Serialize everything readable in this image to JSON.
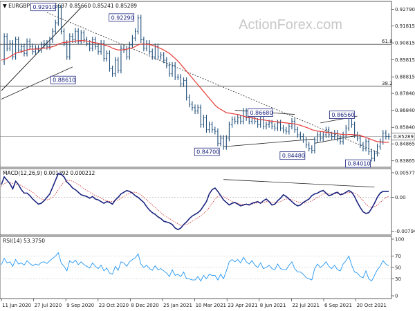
{
  "chart_data": {
    "type": "line",
    "symbol": "EURGBP",
    "timeframe": "Daily",
    "ohlc_header": "0.85637 0.85660 0.85241 0.85289",
    "watermark": "ActionForex.com",
    "x_ticks": [
      "11 Jun 2020",
      "27 Jul 2020",
      "9 Sep 2020",
      "23 Oct 2020",
      "8 Dec 2020",
      "25 Jan 2021",
      "10 Mar 2021",
      "23 Apr 2021",
      "8 Jun 2021",
      "22 Jul 2021",
      "6 Sep 2021",
      "20 Oct 2021"
    ],
    "price": {
      "y_ticks": [
        "0.92790",
        "0.91815",
        "0.90815",
        "0.89815",
        "0.88815",
        "0.87840",
        "0.86840",
        "0.85840",
        "0.84865",
        "0.83865"
      ],
      "ylim": [
        0.8365,
        0.931
      ],
      "last_price_label": "0.85289",
      "fib_lines": [
        {
          "label": "61.8",
          "value": 0.9073
        },
        {
          "label": "38.2",
          "value": 0.8826
        }
      ],
      "callouts": [
        {
          "text": "0.92910",
          "value": 0.9291
        },
        {
          "text": "0.92290",
          "value": 0.9229
        },
        {
          "text": "0.88610",
          "value": 0.8861
        },
        {
          "text": "0.84700",
          "value": 0.847
        },
        {
          "text": "0.86680",
          "value": 0.8668
        },
        {
          "text": "0.84480",
          "value": 0.8448
        },
        {
          "text": "0.86560",
          "value": 0.8656
        },
        {
          "text": "0.84010",
          "value": 0.8401
        }
      ],
      "series": [
        {
          "values": [
            0.897,
            0.912,
            0.905,
            0.908,
            0.9,
            0.91,
            0.904,
            0.906,
            0.902,
            0.909,
            0.906,
            0.903,
            0.905,
            0.904,
            0.907,
            0.908,
            0.906,
            0.91,
            0.915,
            0.92,
            0.9291,
            0.915,
            0.908,
            0.9,
            0.912,
            0.91,
            0.915,
            0.909,
            0.914,
            0.91,
            0.908,
            0.905,
            0.91,
            0.906,
            0.903,
            0.908,
            0.899,
            0.902,
            0.893,
            0.89,
            0.898,
            0.892,
            0.905,
            0.904,
            0.9,
            0.907,
            0.911,
            0.915,
            0.9229,
            0.91,
            0.905,
            0.908,
            0.903,
            0.9,
            0.906,
            0.9,
            0.901,
            0.898,
            0.895,
            0.89,
            0.895,
            0.888,
            0.888,
            0.884,
            0.886,
            0.876,
            0.872,
            0.87,
            0.868,
            0.87,
            0.86,
            0.864,
            0.857,
            0.86,
            0.857,
            0.856,
            0.849,
            0.852,
            0.847,
            0.852,
            0.86,
            0.863,
            0.862,
            0.864,
            0.862,
            0.868,
            0.864,
            0.862,
            0.866,
            0.862,
            0.86,
            0.863,
            0.859,
            0.86,
            0.861,
            0.859,
            0.858,
            0.861,
            0.858,
            0.8568,
            0.856,
            0.859,
            0.862,
            0.857,
            0.854,
            0.853,
            0.851,
            0.848,
            0.846,
            0.8448,
            0.851,
            0.854,
            0.852,
            0.854,
            0.857,
            0.854,
            0.853,
            0.855,
            0.852,
            0.85,
            0.854,
            0.858,
            0.8656,
            0.86,
            0.854,
            0.852,
            0.848,
            0.846,
            0.85,
            0.844,
            0.8401,
            0.843,
            0.847,
            0.85,
            0.855,
            0.853,
            0.8529
          ]
        },
        {
          "values": [
            0.898,
            0.8985,
            0.899,
            0.9,
            0.901,
            0.902,
            0.9025,
            0.903,
            0.9035,
            0.904,
            0.9045,
            0.9045,
            0.9045,
            0.9045,
            0.905,
            0.905,
            0.9052,
            0.9055,
            0.906,
            0.9065,
            0.9075,
            0.908,
            0.9085,
            0.9085,
            0.9088,
            0.909,
            0.9092,
            0.9095,
            0.9095,
            0.9095,
            0.9092,
            0.909,
            0.9085,
            0.9082,
            0.908,
            0.9075,
            0.907,
            0.9065,
            0.906,
            0.905,
            0.9045,
            0.904,
            0.904,
            0.9042,
            0.9045,
            0.9048,
            0.9052,
            0.906,
            0.907,
            0.9075,
            0.9075,
            0.9074,
            0.9072,
            0.9068,
            0.9062,
            0.9055,
            0.9048,
            0.904,
            0.903,
            0.902,
            0.9005,
            0.899,
            0.8975,
            0.8955,
            0.8935,
            0.8915,
            0.8895,
            0.8875,
            0.8855,
            0.8835,
            0.8815,
            0.8795,
            0.8775,
            0.8755,
            0.8735,
            0.8715,
            0.87,
            0.869,
            0.868,
            0.867,
            0.8668,
            0.8665,
            0.8662,
            0.866,
            0.8655,
            0.865,
            0.8645,
            0.8642,
            0.864,
            0.8636,
            0.8632,
            0.863,
            0.8628,
            0.8625,
            0.8622,
            0.862,
            0.8618,
            0.8616,
            0.8614,
            0.8612,
            0.861,
            0.8608,
            0.8606,
            0.8604,
            0.86,
            0.8596,
            0.859,
            0.8584,
            0.8578,
            0.857,
            0.8566,
            0.8562,
            0.856,
            0.8558,
            0.8555,
            0.8552,
            0.855,
            0.8548,
            0.8546,
            0.8544,
            0.8542,
            0.854,
            0.8542,
            0.8542,
            0.854,
            0.8538,
            0.8535,
            0.853,
            0.8524,
            0.8518,
            0.8512,
            0.8505,
            0.85,
            0.8498,
            0.8497,
            0.8496,
            0.8496
          ]
        }
      ]
    },
    "macd": {
      "label": "MACD(12,26,9) 0.001392 0.000212",
      "y_ticks": [
        "0.005779",
        "0.00",
        "-0.007941"
      ],
      "ylim": [
        -0.0082,
        0.0061
      ],
      "series": [
        {
          "values": [
            0.003,
            0.0048,
            0.004,
            0.0032,
            0.002,
            0.0038,
            0.003,
            0.0018,
            0.001,
            0.001,
            0.0004,
            -0.0004,
            -0.001,
            -0.0016,
            -0.0014,
            -0.0008,
            0.0,
            0.0008,
            0.0024,
            0.004,
            0.0056,
            0.0054,
            0.0048,
            0.0036,
            0.003,
            0.0022,
            0.0018,
            0.0012,
            0.0006,
            0.0004,
            0.0002,
            -0.0002,
            0.0002,
            -0.0004,
            -0.0006,
            -0.001,
            -0.0014,
            -0.001,
            -0.0012,
            -0.0016,
            -0.0006,
            0.0,
            0.0008,
            0.0012,
            0.0016,
            0.0014,
            0.001,
            0.0004,
            0.0,
            -0.0006,
            -0.0012,
            -0.0022,
            -0.003,
            -0.0036,
            -0.004,
            -0.0046,
            -0.005,
            -0.0056,
            -0.0058,
            -0.006,
            -0.0064,
            -0.0072,
            -0.0076,
            -0.0072,
            -0.0064,
            -0.0058,
            -0.005,
            -0.0044,
            -0.004,
            -0.0036,
            -0.003,
            -0.002,
            -0.001,
            0.0008,
            0.0018,
            0.0022,
            0.0014,
            0.0004,
            -0.0006,
            -0.0012,
            -0.0018,
            -0.0014,
            -0.0012,
            -0.0016,
            -0.002,
            -0.0018,
            -0.0016,
            -0.0018,
            -0.0014,
            -0.0012,
            -0.001,
            -0.0014,
            -0.0008,
            -0.0004,
            -0.001,
            -0.0018,
            -0.0016,
            -0.0008,
            -0.0002,
            0.0006,
            0.0002,
            -0.0004,
            -0.001,
            -0.0016,
            -0.002,
            -0.0018,
            -0.0012,
            -0.0008,
            -0.0004,
            0.0004,
            0.0008,
            0.001,
            0.0014,
            0.0016,
            0.001,
            0.0004,
            0.0006,
            0.001,
            0.0012,
            0.0006,
            0.0008,
            0.0012,
            0.0016,
            0.0012,
            0.0002,
            -0.0012,
            -0.0024,
            -0.0034,
            -0.0038,
            -0.0036,
            -0.0026,
            -0.0014,
            0.0,
            0.001,
            0.0014,
            0.0014,
            0.0014
          ]
        },
        {
          "values": [
            0.0026,
            0.0032,
            0.0036,
            0.0036,
            0.0032,
            0.003,
            0.003,
            0.0028,
            0.0024,
            0.002,
            0.0016,
            0.0012,
            0.0006,
            0.0,
            -0.0004,
            -0.0006,
            -0.0006,
            -0.0004,
            0.0,
            0.0008,
            0.0018,
            0.0028,
            0.0036,
            0.004,
            0.004,
            0.0038,
            0.0034,
            0.003,
            0.0026,
            0.002,
            0.0016,
            0.0012,
            0.0008,
            0.0004,
            0.0002,
            -0.0002,
            -0.0006,
            -0.0008,
            -0.001,
            -0.001,
            -0.0008,
            -0.0006,
            -0.0002,
            0.0002,
            0.0006,
            0.001,
            0.0012,
            0.0012,
            0.001,
            0.0006,
            0.0,
            -0.0006,
            -0.0012,
            -0.0018,
            -0.0024,
            -0.003,
            -0.0036,
            -0.0042,
            -0.0046,
            -0.005,
            -0.0054,
            -0.0058,
            -0.0062,
            -0.0066,
            -0.0066,
            -0.0064,
            -0.006,
            -0.0056,
            -0.0052,
            -0.0048,
            -0.0044,
            -0.0038,
            -0.0032,
            -0.0024,
            -0.0014,
            -0.0004,
            0.0002,
            0.0004,
            0.0002,
            -0.0002,
            -0.0006,
            -0.001,
            -0.0012,
            -0.0014,
            -0.0016,
            -0.0016,
            -0.0016,
            -0.0016,
            -0.0016,
            -0.0014,
            -0.0013,
            -0.0013,
            -0.0012,
            -0.001,
            -0.001,
            -0.0012,
            -0.0013,
            -0.0012,
            -0.001,
            -0.0006,
            -0.0004,
            -0.0004,
            -0.0005,
            -0.0008,
            -0.0011,
            -0.0013,
            -0.0014,
            -0.0013,
            -0.0011,
            -0.0008,
            -0.0004,
            0.0,
            0.0004,
            0.0008,
            0.0009,
            0.0008,
            0.0008,
            0.0008,
            0.0009,
            0.0009,
            0.0009,
            0.001,
            0.0011,
            0.0012,
            0.001,
            0.0006,
            0.0,
            -0.0008,
            -0.0016,
            -0.0022,
            -0.0024,
            -0.0022,
            -0.0018,
            -0.0012,
            -0.0006,
            0.0,
            0.0002
          ]
        }
      ]
    },
    "rsi": {
      "label": "RSI(14) 53.3750",
      "y_ticks": [
        "100",
        "70",
        "50",
        "30",
        "0"
      ],
      "ylim": [
        0,
        100
      ],
      "series": [
        {
          "values": [
            55,
            66,
            58,
            60,
            52,
            64,
            56,
            58,
            54,
            62,
            57,
            53,
            56,
            54,
            59,
            60,
            57,
            62,
            66,
            70,
            76,
            58,
            52,
            44,
            62,
            58,
            63,
            55,
            60,
            55,
            52,
            49,
            58,
            52,
            48,
            54,
            44,
            49,
            40,
            38,
            52,
            45,
            60,
            58,
            52,
            60,
            64,
            67,
            74,
            56,
            50,
            54,
            48,
            45,
            53,
            46,
            48,
            44,
            40,
            34,
            46,
            36,
            38,
            34,
            42,
            30,
            30,
            28,
            28,
            34,
            26,
            36,
            30,
            38,
            36,
            36,
            28,
            38,
            30,
            44,
            60,
            64,
            60,
            64,
            58,
            68,
            60,
            56,
            62,
            54,
            50,
            58,
            48,
            50,
            54,
            48,
            46,
            56,
            48,
            46,
            46,
            54,
            60,
            48,
            42,
            42,
            38,
            32,
            30,
            28,
            48,
            56,
            50,
            54,
            60,
            52,
            48,
            54,
            46,
            44,
            56,
            62,
            70,
            54,
            42,
            40,
            34,
            32,
            44,
            30,
            26,
            36,
            46,
            52,
            62,
            56,
            53
          ]
        }
      ]
    }
  }
}
